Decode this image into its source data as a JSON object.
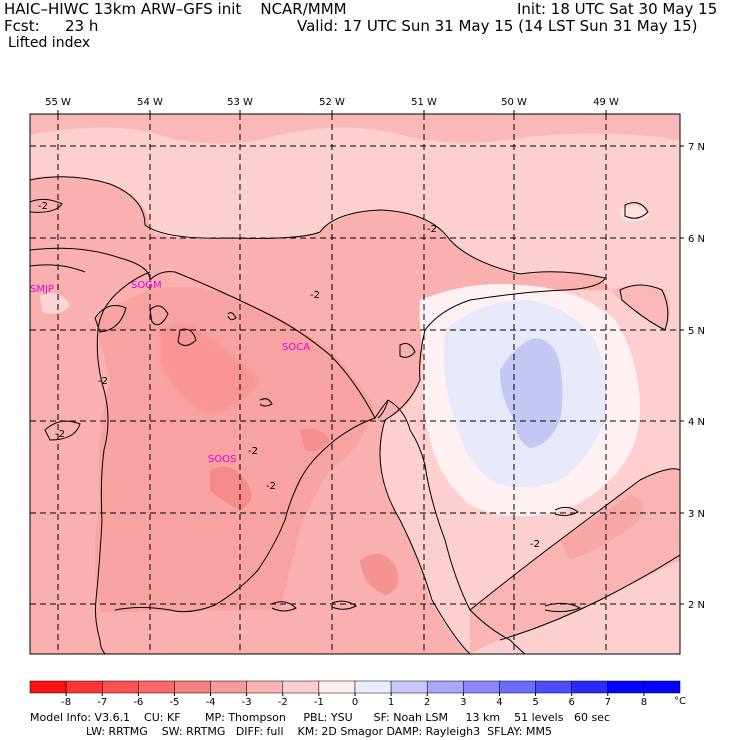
{
  "header": {
    "title_left": "HAIC–HIWC 13km ARW–GFS init    NCAR/MMM",
    "init": "Init: 18 UTC Sat 30 May 15",
    "fcst_label": "Fcst:",
    "fcst_value": "23 h",
    "valid": "Valid: 17 UTC Sun 31 May 15 (14 LST Sun 31 May 15)",
    "field": "Lifted index"
  },
  "map": {
    "lon_labels": [
      "55 W",
      "54 W",
      "53 W",
      "52 W",
      "51 W",
      "50 W",
      "49 W"
    ],
    "lat_labels": [
      "7 N",
      "6 N",
      "5 N",
      "4 N",
      "3 N",
      "2 N"
    ],
    "stations": [
      "SMJP",
      "SOGM",
      "SOCA",
      "SOOS"
    ],
    "contour_labels": [
      "-2",
      "-2",
      "-2",
      "-2",
      "-2",
      "-2",
      "-2",
      "-2"
    ],
    "colors": {
      "pale": "#fdd0d0",
      "mid": "#fbb0b0",
      "deep": "#f99a9a",
      "white": "#ffeef0",
      "lavender": "#e6e6fb",
      "blue": "#c8c8f6"
    }
  },
  "colorbar": {
    "ticks": [
      "-8",
      "-7",
      "-6",
      "-5",
      "-4",
      "-3",
      "-2",
      "-1",
      "0",
      "1",
      "2",
      "3",
      "4",
      "5",
      "6",
      "7",
      "8"
    ],
    "unit": "°C",
    "colors": [
      "#ff1010",
      "#ff3535",
      "#ff5050",
      "#ff6868",
      "#f58080",
      "#f59a9a",
      "#f8b4b4",
      "#fbcfcf",
      "#ffecec",
      "#ececff",
      "#c8c8ff",
      "#a8a8ff",
      "#8a8aff",
      "#6c6cff",
      "#4d4dff",
      "#2a2aff",
      "#0505ff"
    ]
  },
  "footer": {
    "line1": "Model Info: V3.6.1    CU: KF       MP: Thompson     PBL: YSU      SF: Noah LSM     13 km    51 levels   60 sec",
    "line2": "                LW: RRTMG    SW: RRTMG   DIFF: full    KM: 2D Smagor DAMP: Rayleigh3  SFLAY: MM5"
  }
}
